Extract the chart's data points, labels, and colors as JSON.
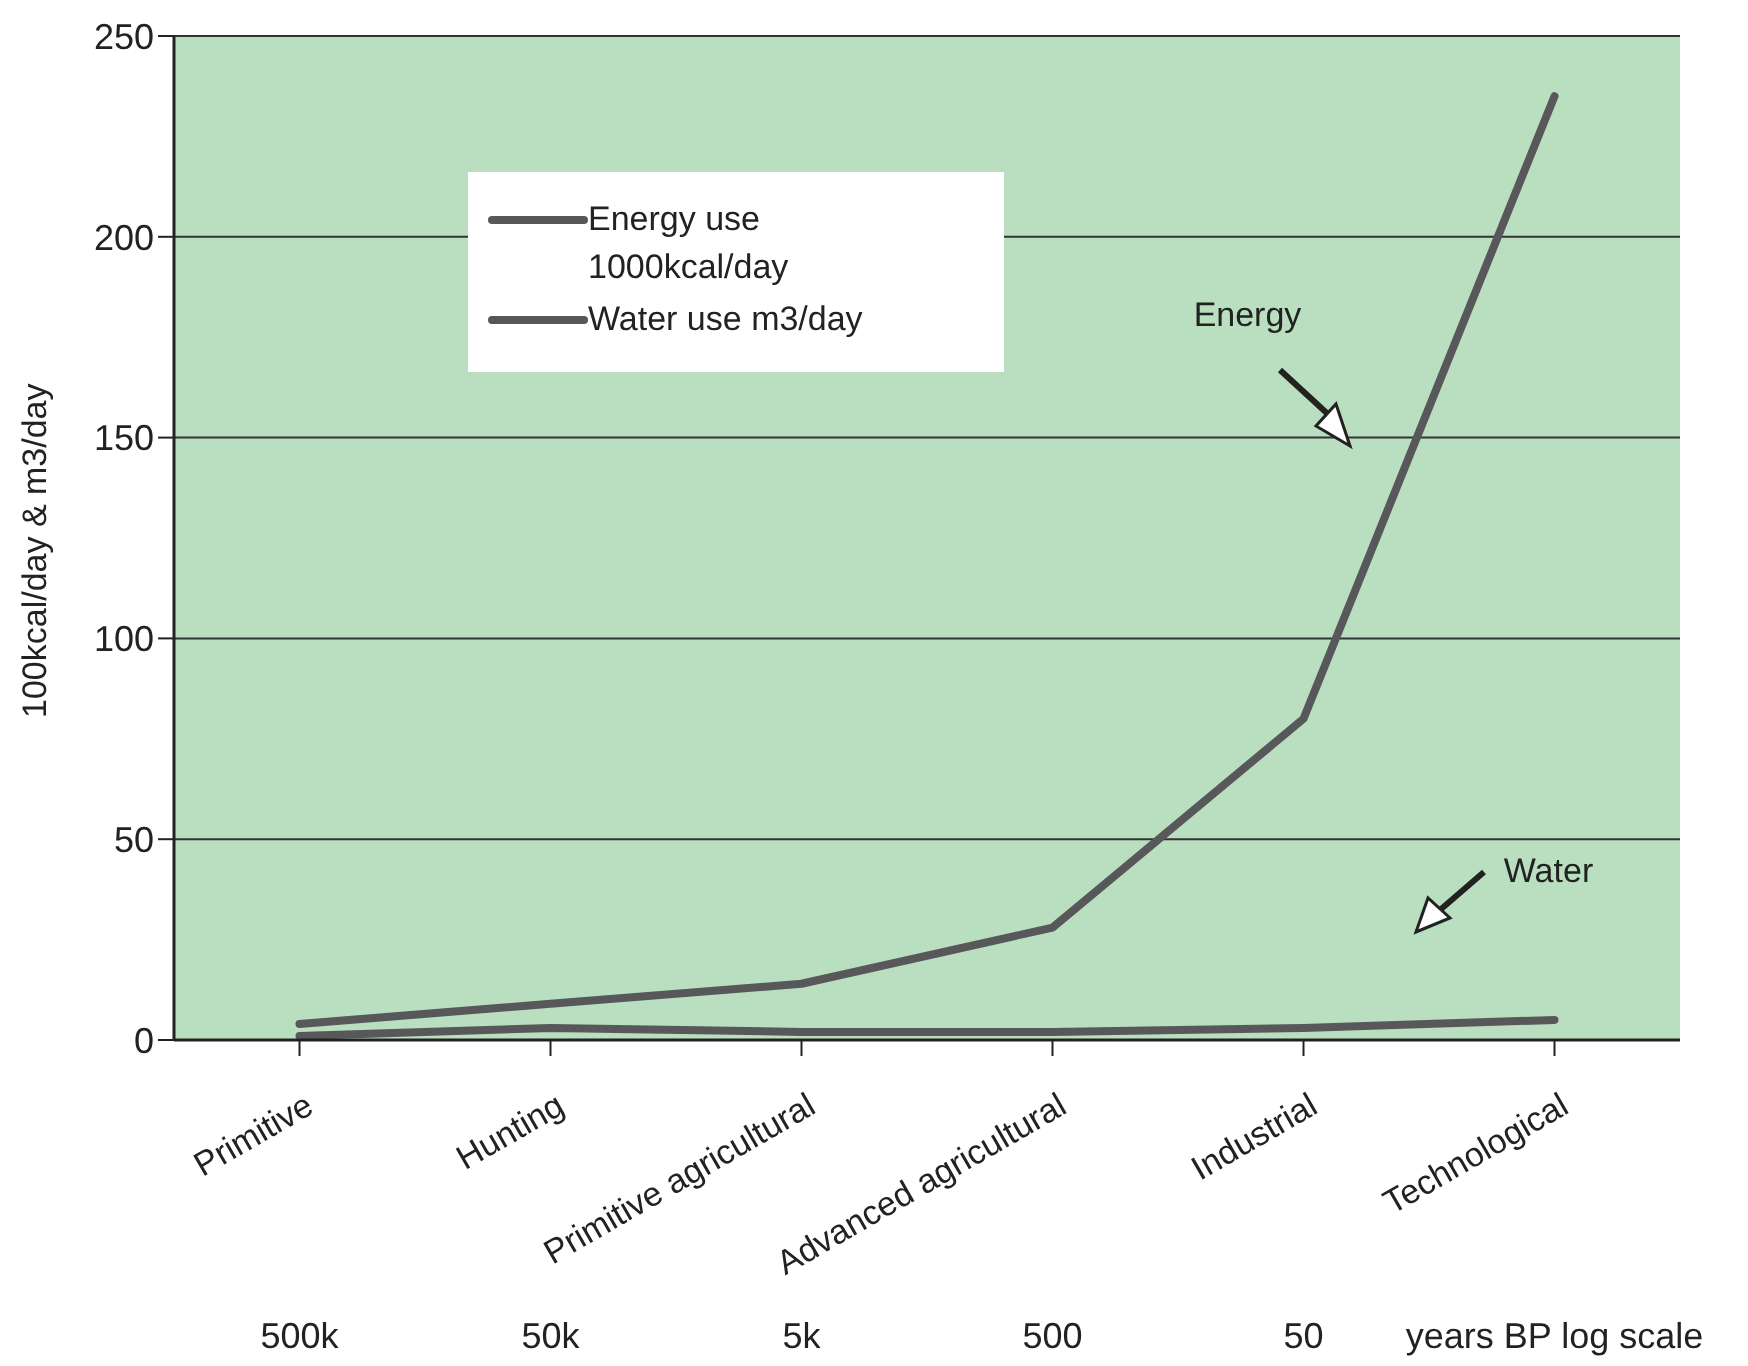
{
  "chart_data": {
    "type": "line",
    "ylabel": "100kcal/day & m3/day",
    "categories": [
      "Primitive",
      "Hunting",
      "Primitive agricultural",
      "Advanced agricultural",
      "Industrial",
      "Technological"
    ],
    "series": [
      {
        "name": "Energy use 1000kcal/day",
        "color": "#58585a",
        "values": [
          4,
          9,
          14,
          28,
          80,
          235
        ]
      },
      {
        "name": "Water use m3/day",
        "color": "#58585a",
        "values": [
          1,
          3,
          2,
          2,
          3,
          5
        ]
      }
    ],
    "ylim": [
      0,
      250
    ],
    "yticks": [
      0,
      50,
      100,
      150,
      200,
      250
    ],
    "grid": "y",
    "legend": "top left",
    "marker": "none",
    "line_style": "solid",
    "annotations": [
      "Energy",
      "Water",
      "500k",
      "50k",
      "5k",
      "500",
      "50",
      "years BP log scale"
    ]
  }
}
